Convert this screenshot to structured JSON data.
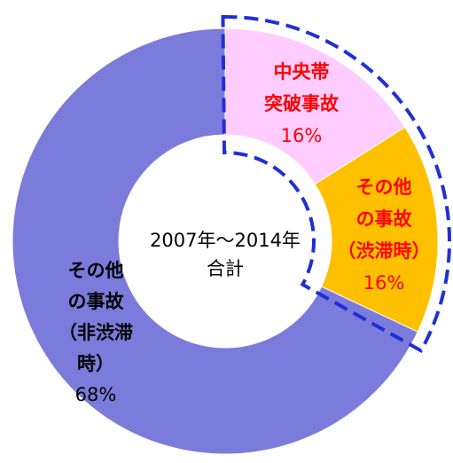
{
  "chart_data": {
    "type": "donut",
    "categories": [
      [
        "中央帯",
        "突破事故"
      ],
      [
        "その他",
        "の事故",
        "（渋滞時）"
      ],
      [
        "その他",
        "の事故",
        "（非渋滞",
        "時）"
      ]
    ],
    "values": [
      16,
      16,
      68
    ],
    "value_labels": [
      "16%",
      "16%",
      "68%"
    ],
    "colors": [
      "#ffccff",
      "#ffc000",
      "#7b7bdb"
    ],
    "label_colors": [
      "#ff0000",
      "#ff0000",
      "#000000"
    ],
    "center_text": [
      "2007年～2014年",
      "合計"
    ]
  }
}
